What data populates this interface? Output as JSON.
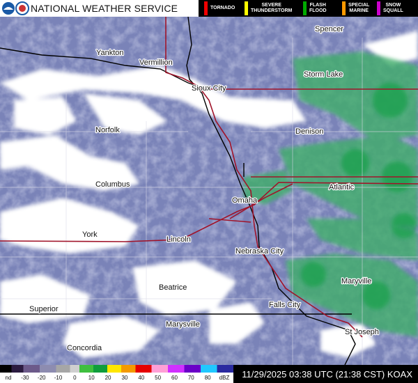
{
  "header": {
    "title": "NATIONAL WEATHER SERVICE",
    "warnings": [
      {
        "lines": [
          "TORNADO"
        ]
      },
      {
        "lines": [
          "SEVERE",
          "THUNDERSTORM"
        ]
      },
      {
        "lines": [
          "FLASH",
          "FLOOD"
        ]
      },
      {
        "lines": [
          "SPECIAL",
          "MARINE"
        ]
      },
      {
        "lines": [
          "SNOW",
          "SQUALL"
        ]
      }
    ]
  },
  "cities": [
    "Spencer",
    "Yankton",
    "Vermillion",
    "Storm Lake",
    "Sioux City",
    "Norfolk",
    "Denison",
    "Columbus",
    "Atlantic",
    "Omaha",
    "York",
    "Lincoln",
    "Nebraska City",
    "Maryville",
    "Beatrice",
    "Falls City",
    "Superior",
    "Marysville",
    "St Joseph",
    "Concordia"
  ],
  "footer": {
    "scale": [
      "nd",
      "-30",
      "-20",
      "-10",
      "0",
      "10",
      "20",
      "30",
      "40",
      "50",
      "60",
      "70",
      "80",
      "dBZ"
    ],
    "timestamp": "11/29/2025 03:38 UTC (21:38 CST) KOAX"
  }
}
